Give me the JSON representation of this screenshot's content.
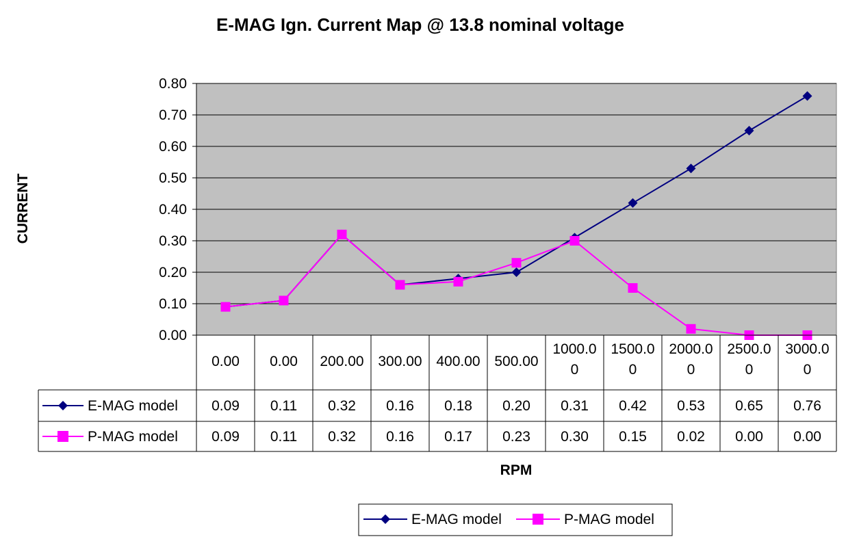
{
  "chart_data": {
    "type": "line",
    "title": "E-MAG Ign. Current Map @ 13.8 nominal voltage",
    "xlabel": "RPM",
    "ylabel": "CURRENT",
    "ylim": [
      0,
      0.8
    ],
    "yticks": [
      "0.00",
      "0.10",
      "0.20",
      "0.30",
      "0.40",
      "0.50",
      "0.60",
      "0.70",
      "0.80"
    ],
    "categories": [
      [
        "0.00"
      ],
      [
        "0.00"
      ],
      [
        "200.00"
      ],
      [
        "300.00"
      ],
      [
        "400.00"
      ],
      [
        "500.00"
      ],
      [
        "1000.0",
        "0"
      ],
      [
        "1500.0",
        "0"
      ],
      [
        "2000.0",
        "0"
      ],
      [
        "2500.0",
        "0"
      ],
      [
        "3000.0",
        "0"
      ]
    ],
    "grid": true,
    "legend_position": "bottom",
    "series": [
      {
        "name": "E-MAG model",
        "color": "#000080",
        "marker": "diamond",
        "values": [
          0.09,
          0.11,
          0.32,
          0.16,
          0.18,
          0.2,
          0.31,
          0.42,
          0.53,
          0.65,
          0.76
        ],
        "labels": [
          "0.09",
          "0.11",
          "0.32",
          "0.16",
          "0.18",
          "0.20",
          "0.31",
          "0.42",
          "0.53",
          "0.65",
          "0.76"
        ]
      },
      {
        "name": "P-MAG model",
        "color": "#FF00FF",
        "marker": "square",
        "values": [
          0.09,
          0.11,
          0.32,
          0.16,
          0.17,
          0.23,
          0.3,
          0.15,
          0.02,
          0.0,
          0.0
        ],
        "labels": [
          "0.09",
          "0.11",
          "0.32",
          "0.16",
          "0.17",
          "0.23",
          "0.30",
          "0.15",
          "0.02",
          "0.00",
          "0.00"
        ]
      }
    ],
    "plot_background": "#C0C0C0"
  }
}
